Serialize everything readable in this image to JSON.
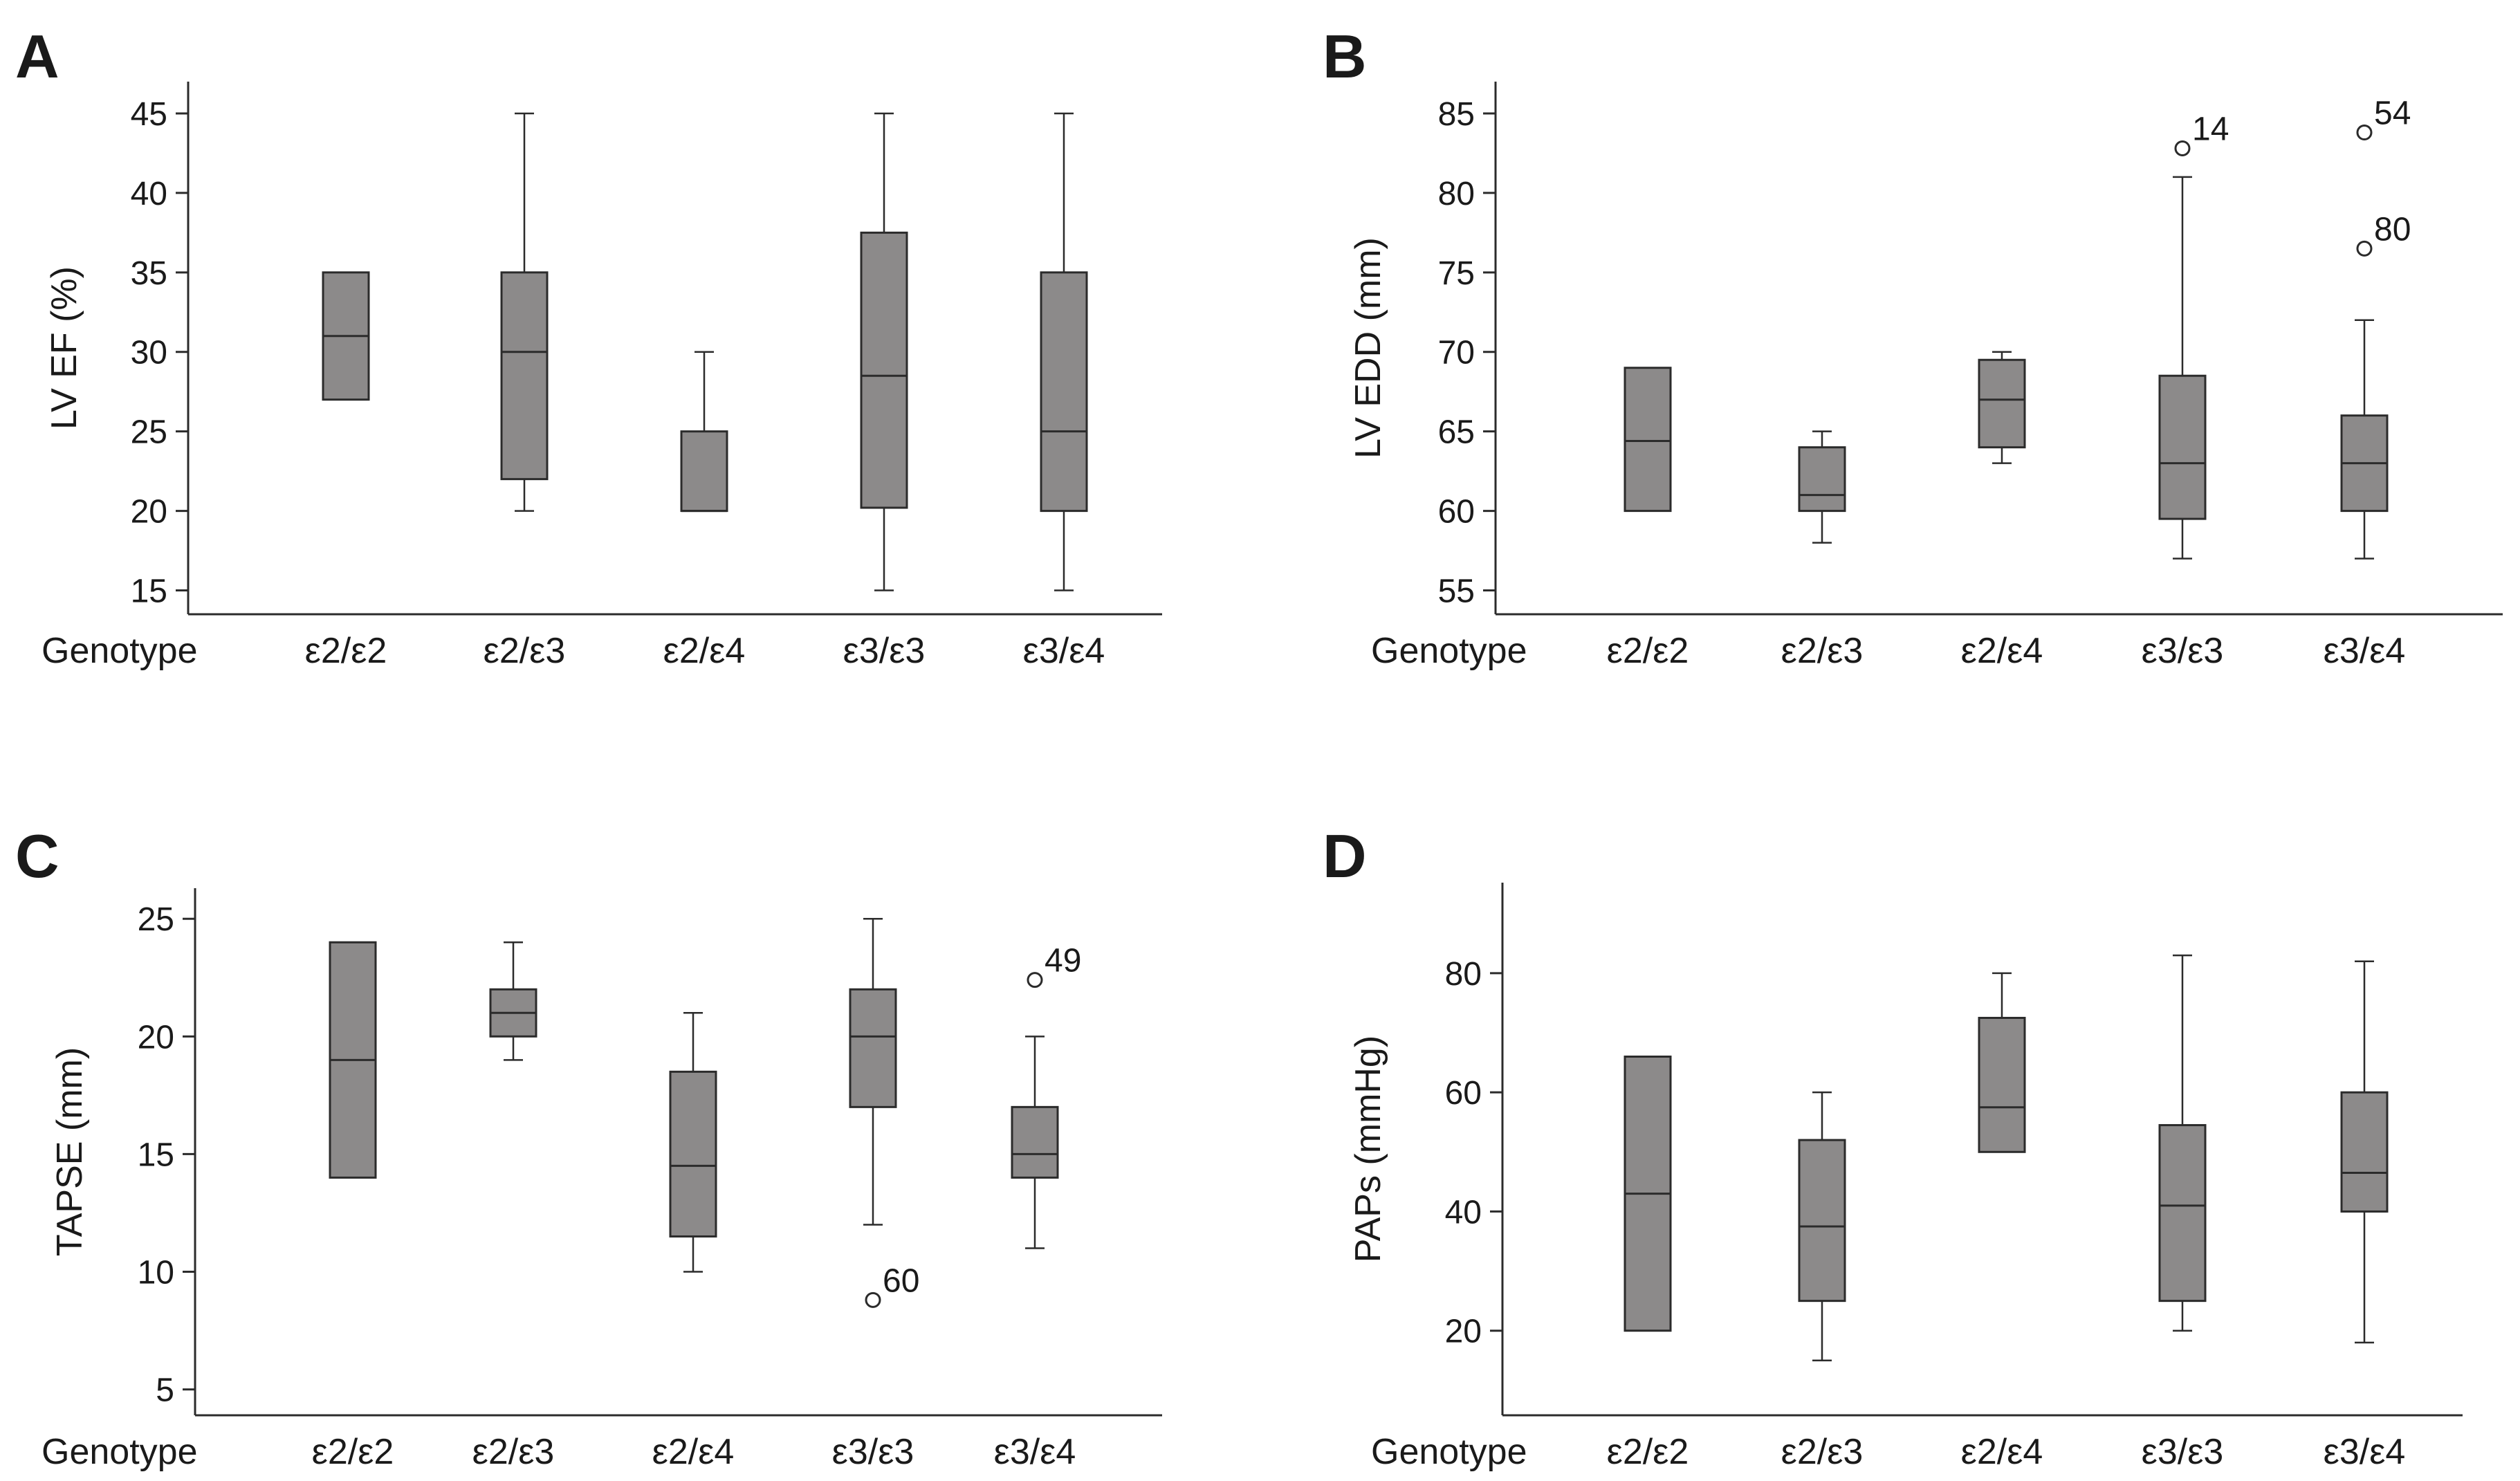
{
  "chart_data": [
    {
      "panel_letter": "A",
      "type": "box",
      "ylabel": "LV EF (%)",
      "xlabel": "Genotype",
      "yticks": [
        15,
        20,
        25,
        30,
        35,
        40,
        45
      ],
      "ylim": [
        13.5,
        47
      ],
      "categories": [
        "ε2/ε2",
        "ε2/ε3",
        "ε2/ε4",
        "ε3/ε3",
        "ε3/ε4"
      ],
      "boxes": [
        {
          "min": 27,
          "q1": 27,
          "median": 31,
          "q3": 35,
          "max": 35,
          "outliers": []
        },
        {
          "min": 20,
          "q1": 22,
          "median": 30,
          "q3": 35,
          "max": 45,
          "outliers": []
        },
        {
          "min": 20,
          "q1": 20,
          "median": 20,
          "q3": 25,
          "max": 30,
          "outliers": []
        },
        {
          "min": 15,
          "q1": 20.2,
          "median": 28.5,
          "q3": 37.5,
          "max": 45,
          "outliers": []
        },
        {
          "min": 15,
          "q1": 20,
          "median": 25,
          "q3": 35,
          "max": 45,
          "outliers": []
        }
      ]
    },
    {
      "panel_letter": "B",
      "type": "box",
      "ylabel": "LV EDD (mm)",
      "xlabel": "Genotype",
      "yticks": [
        55,
        60,
        65,
        70,
        75,
        80,
        85
      ],
      "ylim": [
        53.5,
        87
      ],
      "categories": [
        "ε2/ε2",
        "ε2/ε3",
        "ε2/ε4",
        "ε3/ε3",
        "ε3/ε4"
      ],
      "boxes": [
        {
          "min": 60,
          "q1": 60,
          "median": 64.4,
          "q3": 69,
          "max": 69,
          "outliers": []
        },
        {
          "min": 58,
          "q1": 60,
          "median": 61,
          "q3": 64,
          "max": 65,
          "outliers": []
        },
        {
          "min": 63,
          "q1": 64,
          "median": 67,
          "q3": 69.5,
          "max": 70,
          "outliers": []
        },
        {
          "min": 57,
          "q1": 59.5,
          "median": 63,
          "q3": 68.5,
          "max": 81,
          "outliers": [
            {
              "value": 82.8,
              "label": "14"
            }
          ]
        },
        {
          "min": 57,
          "q1": 60,
          "median": 63,
          "q3": 66,
          "max": 72,
          "outliers": [
            {
              "value": 83.8,
              "label": "54"
            },
            {
              "value": 76.5,
              "label": "80"
            }
          ]
        }
      ]
    },
    {
      "panel_letter": "C",
      "type": "box",
      "ylabel": "TAPSE (mm)",
      "xlabel": "Genotype",
      "yticks": [
        5,
        10,
        15,
        20,
        25
      ],
      "ylim": [
        3.9,
        26.3
      ],
      "categories": [
        "ε2/ε2",
        "ε2/ε3",
        "ε2/ε4",
        "ε3/ε3",
        "ε3/ε4"
      ],
      "boxes": [
        {
          "min": 14,
          "q1": 14,
          "median": 19,
          "q3": 24,
          "max": 24,
          "outliers": []
        },
        {
          "min": 19,
          "q1": 20,
          "median": 21,
          "q3": 22,
          "max": 24,
          "outliers": []
        },
        {
          "min": 10,
          "q1": 11.5,
          "median": 14.5,
          "q3": 18.5,
          "max": 21,
          "outliers": []
        },
        {
          "min": 12,
          "q1": 17,
          "median": 20,
          "q3": 22,
          "max": 25,
          "outliers": [
            {
              "value": 8.8,
              "label": "60"
            }
          ]
        },
        {
          "min": 11,
          "q1": 14,
          "median": 15,
          "q3": 17,
          "max": 20,
          "outliers": [
            {
              "value": 22.4,
              "label": "49"
            }
          ]
        }
      ]
    },
    {
      "panel_letter": "D",
      "type": "box",
      "ylabel": "PAPs (mmHg)",
      "xlabel": "Genotype",
      "yticks": [
        20,
        40,
        60,
        80
      ],
      "ylim": [
        5.8,
        95.2
      ],
      "categories": [
        "ε2/ε2",
        "ε2/ε3",
        "ε2/ε4",
        "ε3/ε3",
        "ε3/ε4"
      ],
      "boxes": [
        {
          "min": 20,
          "q1": 20,
          "median": 43,
          "q3": 66,
          "max": 66,
          "outliers": []
        },
        {
          "min": 15,
          "q1": 25,
          "median": 37.5,
          "q3": 52,
          "max": 60,
          "outliers": []
        },
        {
          "min": 50,
          "q1": 50,
          "median": 57.5,
          "q3": 72.5,
          "max": 80,
          "outliers": []
        },
        {
          "min": 20,
          "q1": 25,
          "median": 41,
          "q3": 54.5,
          "max": 83,
          "outliers": []
        },
        {
          "min": 18,
          "q1": 40,
          "median": 46.5,
          "q3": 60,
          "max": 82,
          "outliers": []
        }
      ]
    }
  ],
  "colors": {
    "box_fill": "#8c8a8a",
    "stroke": "#2b2b2b",
    "text": "#1a1a1a"
  }
}
